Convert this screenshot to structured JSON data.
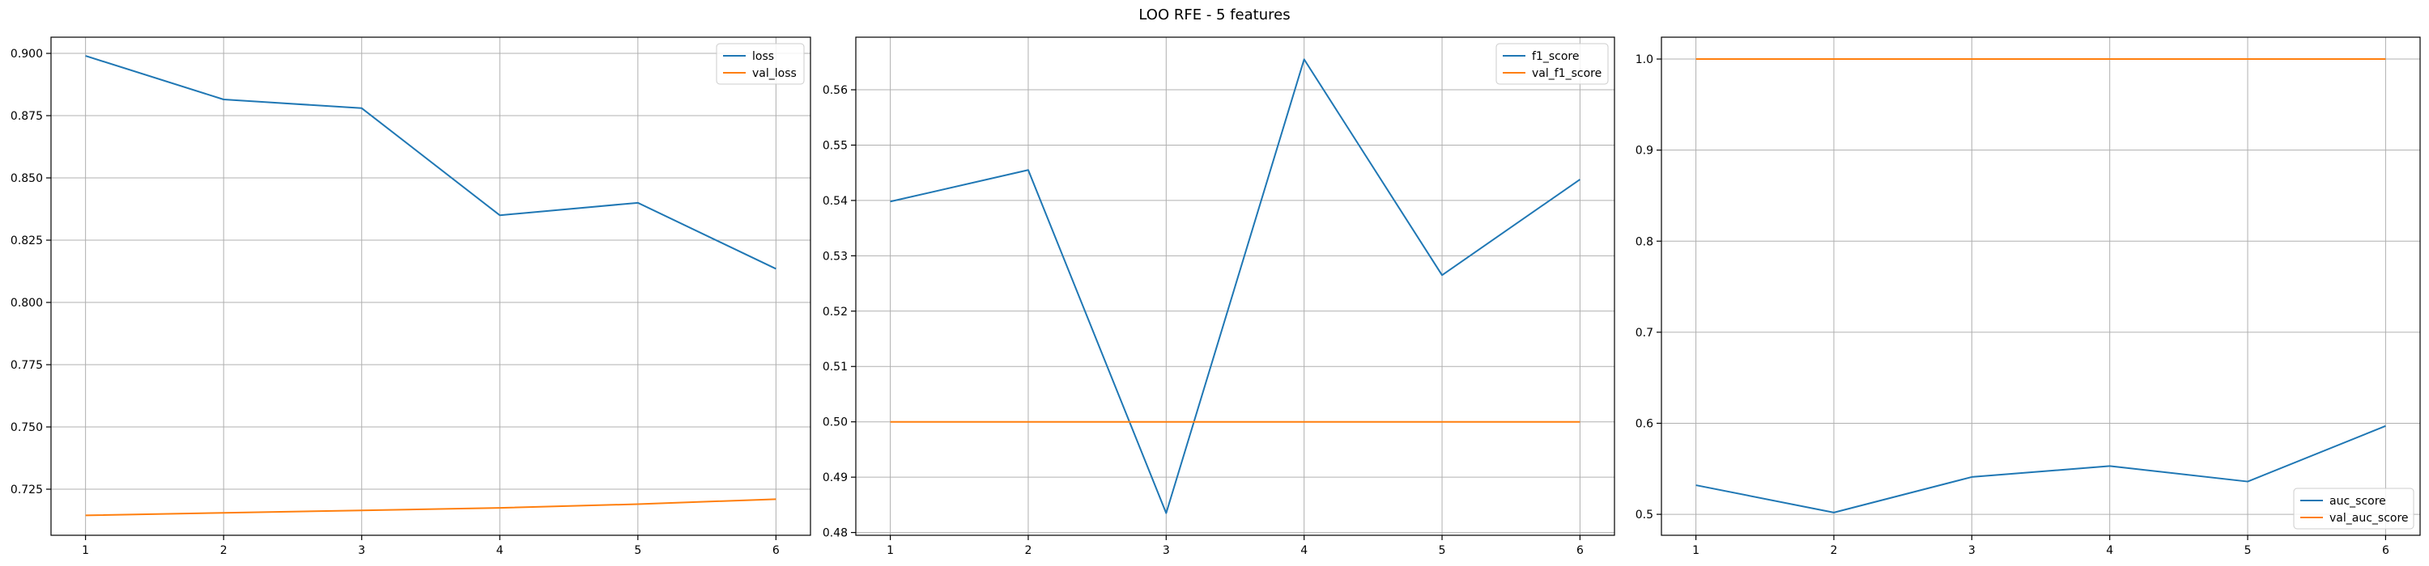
{
  "figure": {
    "title": "LOO RFE - 5 features"
  },
  "colors": {
    "train": "#1f77b4",
    "val": "#ff7f0e",
    "grid": "#b0b0b0",
    "axis": "#000000"
  },
  "chart_data": [
    {
      "type": "line",
      "title": "",
      "xlabel": "",
      "ylabel": "",
      "x": [
        1,
        2,
        3,
        4,
        5,
        6
      ],
      "xlim": [
        0.75,
        6.25
      ],
      "ylim": [
        0.7065,
        0.9065
      ],
      "yticks": [
        0.725,
        0.75,
        0.775,
        0.8,
        0.825,
        0.85,
        0.875,
        0.9
      ],
      "ytick_labels": [
        "0.725",
        "0.750",
        "0.775",
        "0.800",
        "0.825",
        "0.850",
        "0.875",
        "0.900"
      ],
      "grid": true,
      "legend_position": "top-right",
      "series": [
        {
          "name": "loss",
          "values": [
            0.899,
            0.8815,
            0.878,
            0.835,
            0.84,
            0.8135
          ]
        },
        {
          "name": "val_loss",
          "values": [
            0.7145,
            0.7155,
            0.7165,
            0.7175,
            0.719,
            0.721
          ]
        }
      ]
    },
    {
      "type": "line",
      "title": "",
      "xlabel": "",
      "ylabel": "",
      "x": [
        1,
        2,
        3,
        4,
        5,
        6
      ],
      "xlim": [
        0.75,
        6.25
      ],
      "ylim": [
        0.4795,
        0.5695
      ],
      "yticks": [
        0.48,
        0.49,
        0.5,
        0.51,
        0.52,
        0.53,
        0.54,
        0.55,
        0.56
      ],
      "ytick_labels": [
        "0.48",
        "0.49",
        "0.50",
        "0.51",
        "0.52",
        "0.53",
        "0.54",
        "0.55",
        "0.56"
      ],
      "grid": true,
      "legend_position": "top-right",
      "series": [
        {
          "name": "f1_score",
          "values": [
            0.5398,
            0.5455,
            0.4835,
            0.5655,
            0.5265,
            0.5438
          ]
        },
        {
          "name": "val_f1_score",
          "values": [
            0.5,
            0.5,
            0.5,
            0.5,
            0.5,
            0.5
          ]
        }
      ]
    },
    {
      "type": "line",
      "title": "",
      "xlabel": "",
      "ylabel": "",
      "x": [
        1,
        2,
        3,
        4,
        5,
        6
      ],
      "xlim": [
        0.75,
        6.25
      ],
      "ylim": [
        0.477,
        1.024
      ],
      "yticks": [
        0.5,
        0.6,
        0.7,
        0.8,
        0.9,
        1.0
      ],
      "ytick_labels": [
        "0.5",
        "0.6",
        "0.7",
        "0.8",
        "0.9",
        "1.0"
      ],
      "grid": true,
      "legend_position": "bottom-right",
      "series": [
        {
          "name": "auc_score",
          "values": [
            0.532,
            0.502,
            0.541,
            0.553,
            0.536,
            0.597
          ]
        },
        {
          "name": "val_auc_score",
          "values": [
            1.0,
            1.0,
            1.0,
            1.0,
            1.0,
            1.0
          ]
        }
      ]
    }
  ]
}
